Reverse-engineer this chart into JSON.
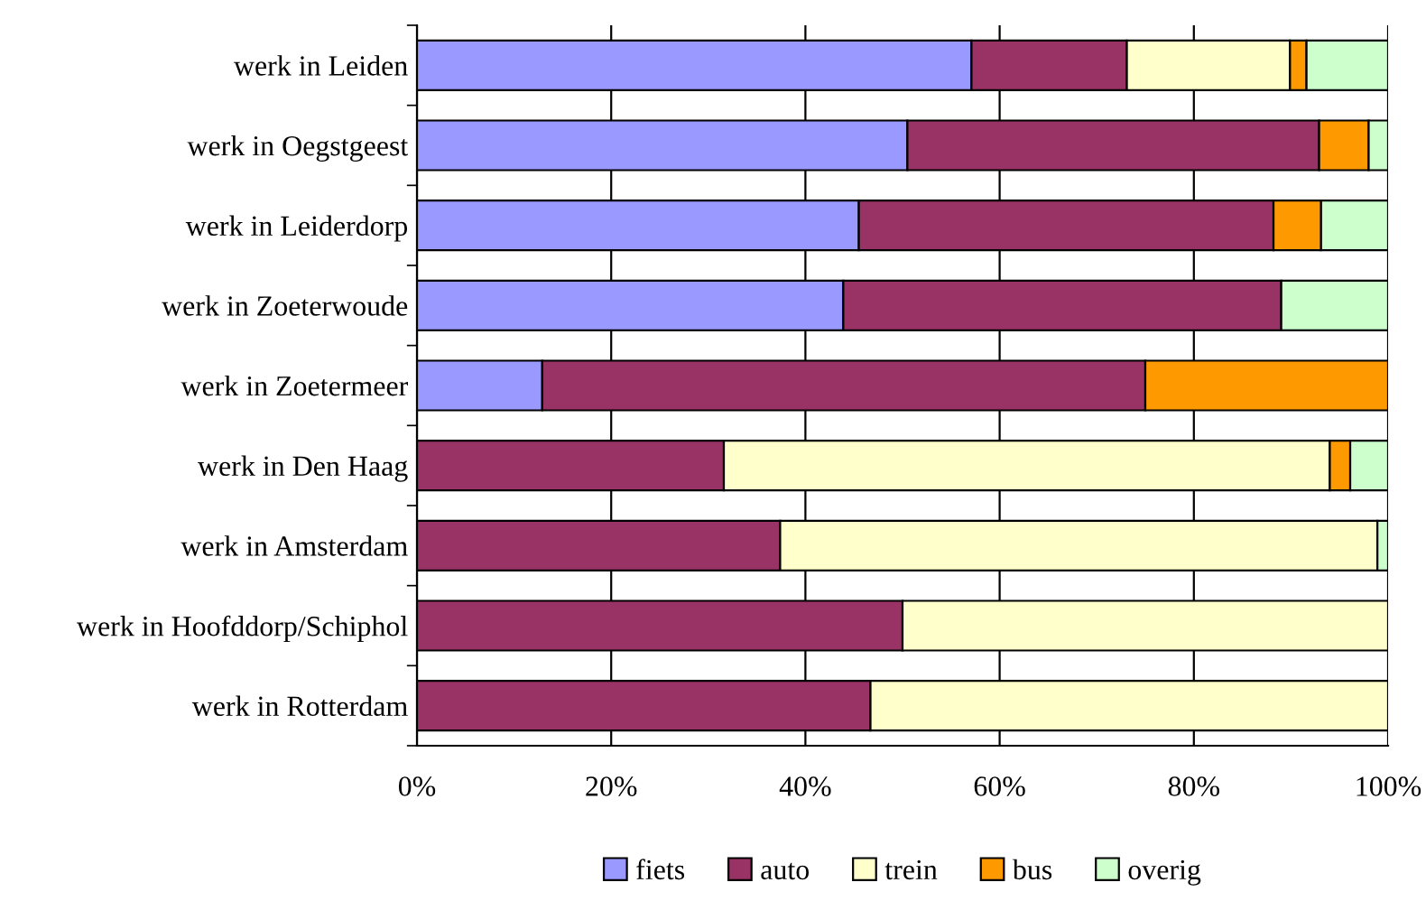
{
  "chart_data": {
    "type": "bar",
    "orientation": "horizontal",
    "stacked": true,
    "categories": [
      "werk in Leiden",
      "werk in Oegstgeest",
      "werk in Leiderdorp",
      "werk in Zoeterwoude",
      "werk in Zoetermeer",
      "werk in Den Haag",
      "werk in Amsterdam",
      "werk in Hoofddorp/Schiphol",
      "werk in Rotterdam"
    ],
    "series": [
      {
        "name": "fiets",
        "color": "#9999ff",
        "values": [
          57.1,
          50.5,
          45.5,
          43.9,
          12.9,
          null,
          null,
          null,
          null
        ]
      },
      {
        "name": "auto",
        "color": "#993366",
        "values": [
          16.0,
          42.4,
          42.7,
          45.1,
          62.1,
          31.6,
          37.4,
          50.0,
          46.7
        ]
      },
      {
        "name": "trein",
        "color": "#ffffcc",
        "values": [
          16.8,
          null,
          null,
          null,
          null,
          62.4,
          61.5,
          50.0,
          53.3
        ]
      },
      {
        "name": "bus",
        "color": "#ff9900",
        "values": [
          1.7,
          5.1,
          4.9,
          null,
          25.0,
          2.1,
          null,
          null,
          null
        ]
      },
      {
        "name": "overig",
        "color": "#ccffcc",
        "values": [
          8.4,
          2.0,
          6.9,
          11.0,
          null,
          3.9,
          1.1,
          null,
          null
        ]
      }
    ],
    "xlim": [
      0,
      100
    ],
    "xticks": [
      {
        "value": 0,
        "label": "0%"
      },
      {
        "value": 20,
        "label": "20%"
      },
      {
        "value": 40,
        "label": "40%"
      },
      {
        "value": 60,
        "label": "60%"
      },
      {
        "value": 80,
        "label": "80%"
      },
      {
        "value": 100,
        "label": "100%"
      }
    ],
    "grid": "x",
    "legend": "bottom"
  }
}
